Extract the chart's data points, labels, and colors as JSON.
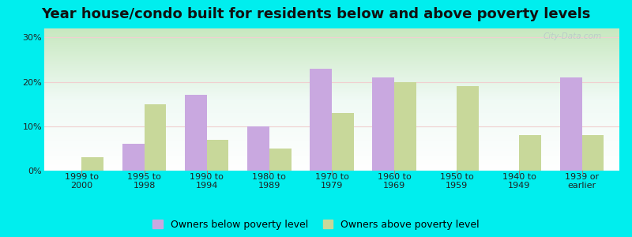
{
  "title": "Year house/condo built for residents below and above poverty levels",
  "categories": [
    "1999 to\n2000",
    "1995 to\n1998",
    "1990 to\n1994",
    "1980 to\n1989",
    "1970 to\n1979",
    "1960 to\n1969",
    "1950 to\n1959",
    "1940 to\n1949",
    "1939 or\nearlier"
  ],
  "below_poverty": [
    0,
    6,
    17,
    10,
    23,
    21,
    0,
    0,
    21
  ],
  "above_poverty": [
    3,
    15,
    7,
    5,
    13,
    20,
    19,
    8,
    8
  ],
  "below_color": "#c9a8e0",
  "above_color": "#c8d89a",
  "bg_color": "#00eeee",
  "ylabel_ticks": [
    0,
    10,
    20,
    30
  ],
  "ylim": [
    0,
    32
  ],
  "bar_width": 0.35,
  "legend_below_label": "Owners below poverty level",
  "legend_above_label": "Owners above poverty level",
  "title_fontsize": 13,
  "tick_fontsize": 8,
  "legend_fontsize": 9,
  "watermark": "City-Data.com"
}
